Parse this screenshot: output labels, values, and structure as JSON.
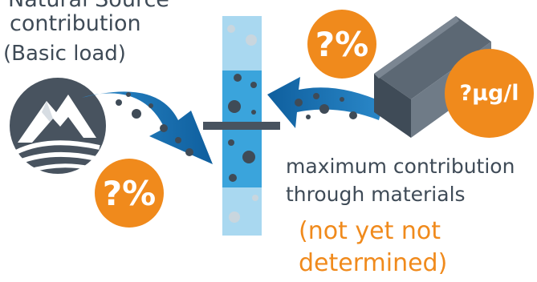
{
  "natural_source": {
    "title_line1": "Natural Source",
    "title_line2": "contribution",
    "subtitle": "(Basic load)"
  },
  "materials": {
    "line1": "maximum contribution",
    "line2": "through materials",
    "status_line1": "(not yet not",
    "status_line2": "determined)"
  },
  "badges": {
    "top_percent": "?%",
    "bottom_percent": "?%",
    "concentration": "?µg/l"
  },
  "colors": {
    "orange": "#f08a1c",
    "dark_slate": "#3f4b57",
    "blue_arrow": "#1a74b7",
    "light_blue": "#a9d8f0",
    "mid_blue": "#3aa4dc"
  },
  "icons": {
    "natural_source": "mountain-landscape-icon",
    "material": "metal-bar-icon"
  }
}
